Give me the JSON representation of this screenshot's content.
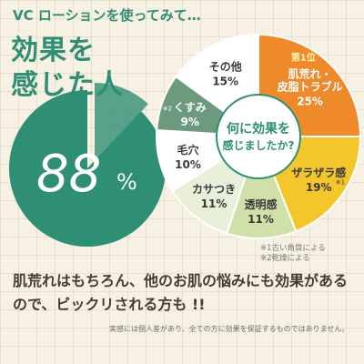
{
  "header": {
    "topline": "VC ローションを使ってみて…",
    "title_line1": "効果を",
    "title_line2": "感じた人"
  },
  "big_percent": {
    "number": "88",
    "unit": "%"
  },
  "chart_data": {
    "type": "pie",
    "center_label_lines": [
      "何に効果を",
      "感じましたか?"
    ],
    "badge": "第1位",
    "slices": [
      {
        "label_lines": [
          "肌荒れ・",
          "皮脂トラブル"
        ],
        "value": 25,
        "value_label": "25%",
        "color": "#ef8a2a",
        "text_color": "#ffffff",
        "note": ""
      },
      {
        "label_lines": [
          "ザラザラ感"
        ],
        "value": 19,
        "value_label": "19%",
        "color": "#f3c62b",
        "text_color": "#3a3a3a",
        "note": "※1"
      },
      {
        "label_lines": [
          "透明感"
        ],
        "value": 11,
        "value_label": "11%",
        "color": "#cfe0a8",
        "text_color": "#3a3a3a",
        "note": ""
      },
      {
        "label_lines": [
          "カサつき"
        ],
        "value": 11,
        "value_label": "11%",
        "color": "#e8f0d9",
        "text_color": "#3a3a3a",
        "note": ""
      },
      {
        "label_lines": [
          "毛穴"
        ],
        "value": 10,
        "value_label": "10%",
        "color": "#ffffff",
        "text_color": "#3a3a3a",
        "note": ""
      },
      {
        "label_lines": [
          "くすみ"
        ],
        "value": 9,
        "value_label": "9%",
        "color": "#6d9a7c",
        "text_color": "#ffffff",
        "note": "※2"
      },
      {
        "label_lines": [
          "その他"
        ],
        "value": 15,
        "value_label": "15%",
        "color": "#ffffff",
        "text_color": "#3a3a3a",
        "note": ""
      }
    ]
  },
  "footnotes": [
    "※1古い角質による",
    "※2乾燥による"
  ],
  "bottom_text": "肌荒れはもちろん、他のお肌の悩みにも効果があるので、ビックリされる方も !!",
  "disclaimer": "実感には個人差があり、全ての方に効果を保証するものではありません。",
  "colors": {
    "green": "#2f8f74",
    "orange": "#ef8a2a",
    "yellow": "#f3c62b"
  }
}
